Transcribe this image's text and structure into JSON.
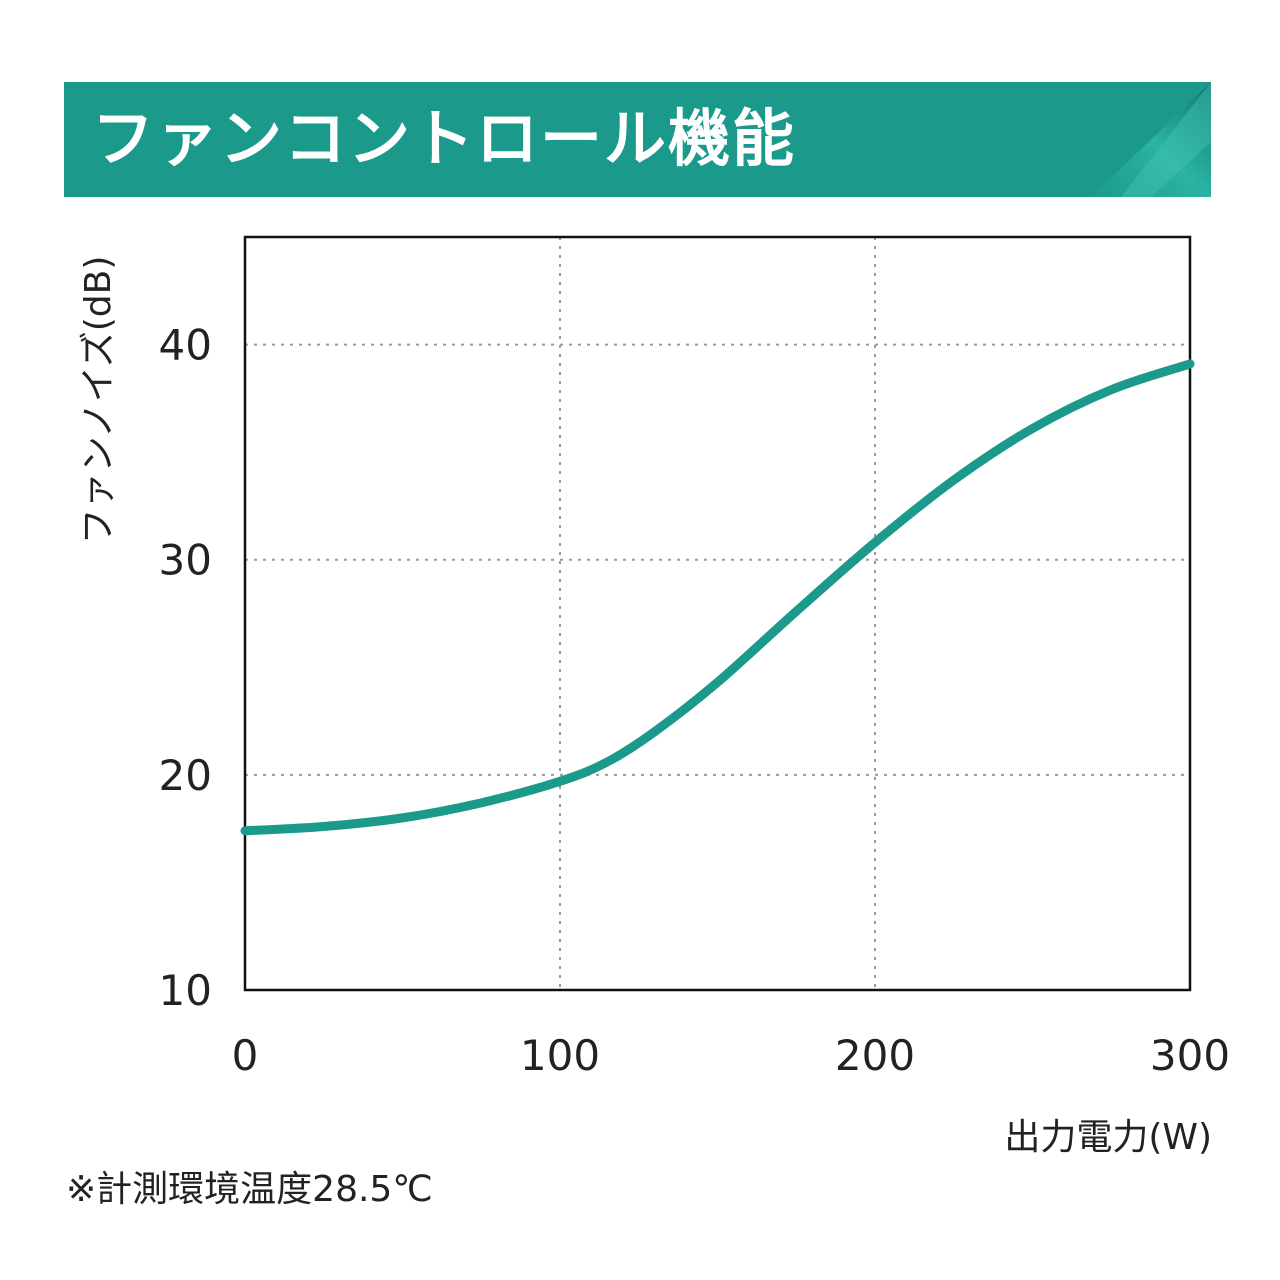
{
  "banner": {
    "title": "ファンコントロール機能",
    "color": "#1b9a8c"
  },
  "footnote": "※計測環境温度28.5℃",
  "chart_data": {
    "type": "line",
    "title": "ファンコントロール機能",
    "xlabel": "出力電力(W)",
    "ylabel": "ファンノイズ(dB)",
    "xlim": [
      0,
      300
    ],
    "ylim": [
      10,
      45
    ],
    "xticks": [
      0,
      100,
      200,
      300
    ],
    "yticks": [
      10,
      20,
      30,
      40
    ],
    "grid": true,
    "line_color": "#1b9a8c",
    "series": [
      {
        "x": [
          0,
          25,
          50,
          75,
          100,
          115,
          130,
          150,
          175,
          200,
          225,
          250,
          275,
          300
        ],
        "y": [
          17.4,
          17.6,
          18.0,
          18.7,
          19.7,
          20.6,
          22.0,
          24.3,
          27.6,
          30.8,
          33.7,
          36.1,
          37.9,
          39.1
        ]
      }
    ]
  }
}
